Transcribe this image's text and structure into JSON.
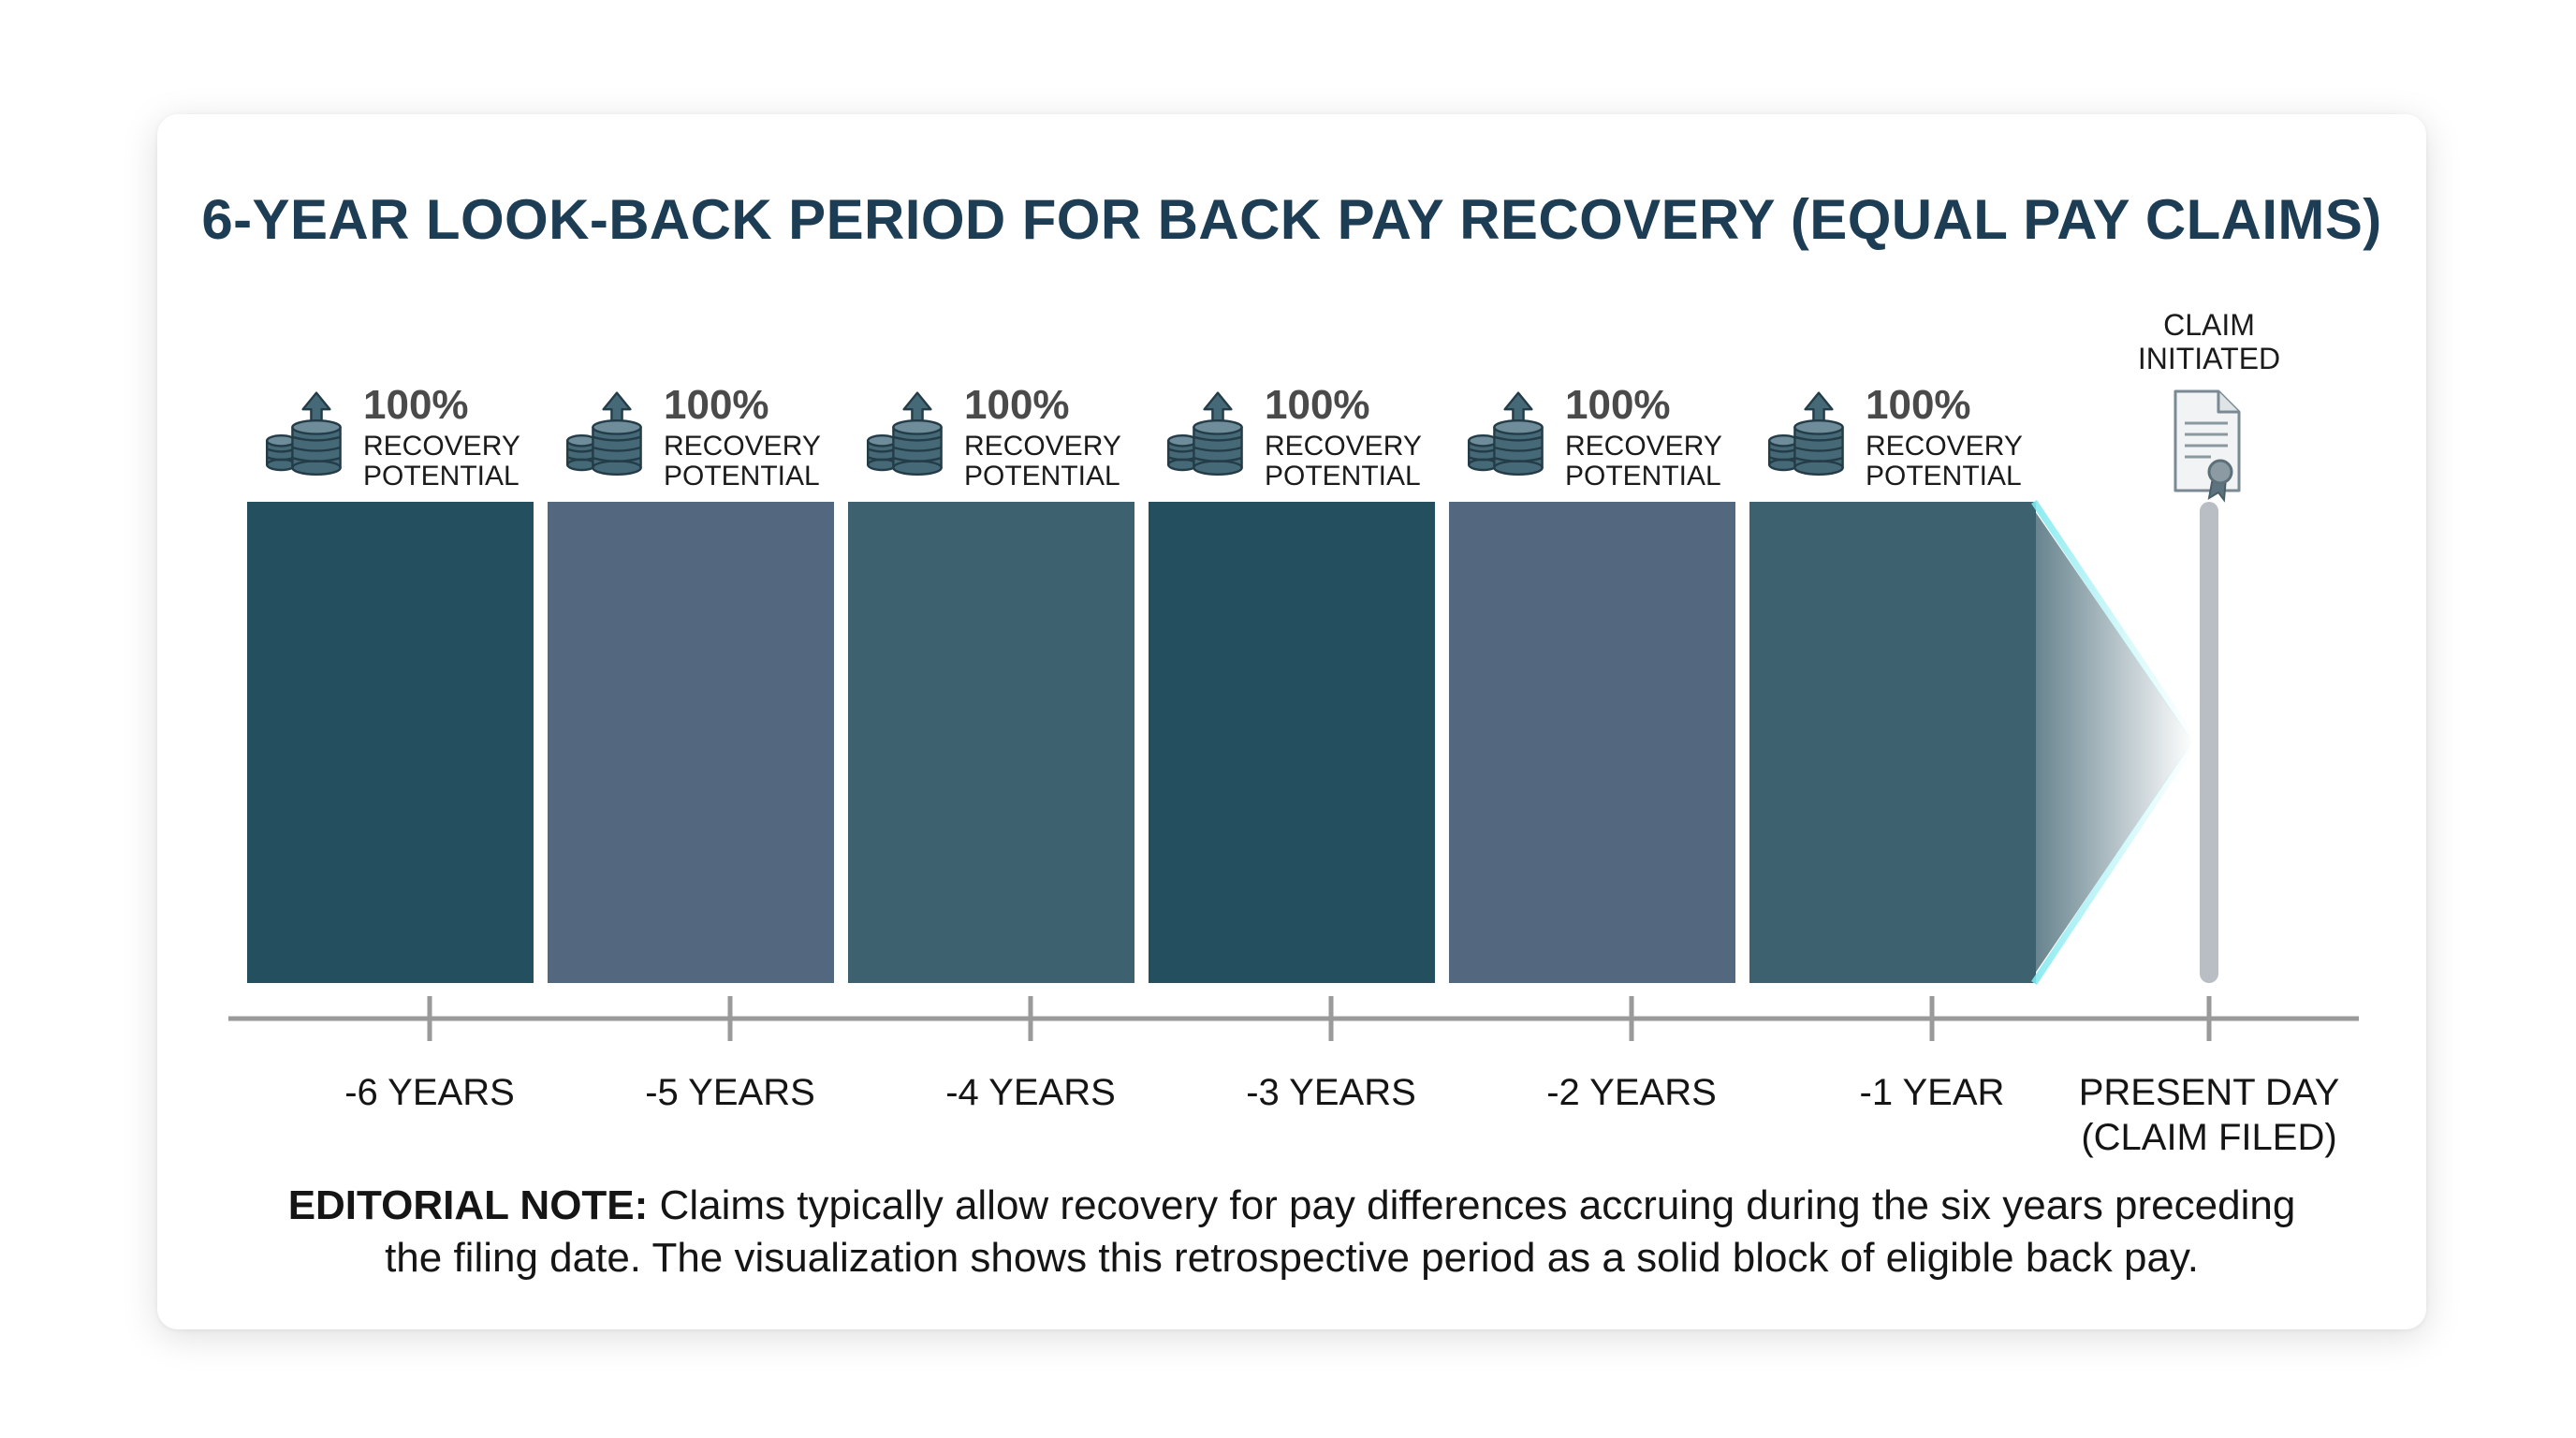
{
  "title": "6-YEAR LOOK-BACK PERIOD FOR BACK PAY RECOVERY (EQUAL PAY CLAIMS)",
  "colors": {
    "title": "#1d3d55",
    "block_dark": "#244f5f",
    "block_slate": "#53677e",
    "block_teal": "#3d616f",
    "axis": "#9a9a9a",
    "present_bar": "#b8bec4",
    "icon": "#466978"
  },
  "periods": [
    {
      "recovery_pct": "100%",
      "recovery_label_1": "RECOVERY",
      "recovery_label_2": "POTENTIAL",
      "tick": "-6 YEARS",
      "fill": "#244f5f",
      "icon": "coin-stack-up-arrow-icon"
    },
    {
      "recovery_pct": "100%",
      "recovery_label_1": "RECOVERY",
      "recovery_label_2": "POTENTIAL",
      "tick": "-5 YEARS",
      "fill": "#53677e",
      "icon": "coin-stack-up-arrow-icon"
    },
    {
      "recovery_pct": "100%",
      "recovery_label_1": "RECOVERY",
      "recovery_label_2": "POTENTIAL",
      "tick": "-4 YEARS",
      "fill": "#3d616f",
      "icon": "coin-stack-up-arrow-icon"
    },
    {
      "recovery_pct": "100%",
      "recovery_label_1": "RECOVERY",
      "recovery_label_2": "POTENTIAL",
      "tick": "-3 YEARS",
      "fill": "#244f5f",
      "icon": "coin-stack-up-arrow-icon"
    },
    {
      "recovery_pct": "100%",
      "recovery_label_1": "RECOVERY",
      "recovery_label_2": "POTENTIAL",
      "tick": "-2 YEARS",
      "fill": "#53677e",
      "icon": "coin-stack-up-arrow-icon"
    },
    {
      "recovery_pct": "100%",
      "recovery_label_1": "RECOVERY",
      "recovery_label_2": "POTENTIAL",
      "tick": "-1 YEAR",
      "fill": "#3d616f",
      "icon": "coin-stack-up-arrow-icon"
    }
  ],
  "present": {
    "claim_label_1": "CLAIM",
    "claim_label_2": "INITIATED",
    "tick_1": "PRESENT DAY",
    "tick_2": "(CLAIM FILED)",
    "icon": "certificate-document-icon"
  },
  "note": {
    "label": "EDITORIAL NOTE:",
    "line_1": "Claims typically allow recovery for pay differences accruing during the six years preceding",
    "line_2": "the filing date. The visualization shows this retrospective period as a solid block of eligible back pay."
  }
}
